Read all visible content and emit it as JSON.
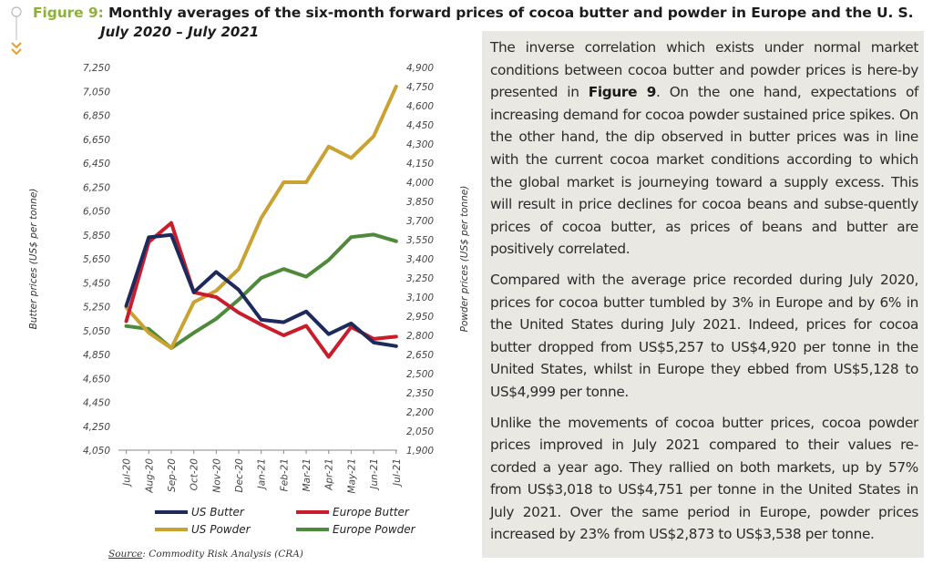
{
  "figure": {
    "label": "Figure 9:",
    "title": "Monthly averages of the six-month forward prices of cocoa butter and powder in Europe and the U. S.",
    "subtitle": "July 2020 – July 2021",
    "source_label": "Source",
    "source_text": ": Commodity Risk Analysis (CRA)"
  },
  "colors": {
    "accent": "#8fb13a",
    "marker": "#e8a02a",
    "panel_bg": "#e9e8e3",
    "us_butter": "#1f2a5c",
    "europe_butter": "#c81d2b",
    "us_powder": "#c9a231",
    "europe_powder": "#4e8a3a"
  },
  "chart_data": {
    "type": "line",
    "categories": [
      "Jul-20",
      "Aug-20",
      "Sep-20",
      "Oct-20",
      "Nov-20",
      "Dec-20",
      "Jan-21",
      "Feb-21",
      "Mar-21",
      "Apr-21",
      "May-21",
      "Jun-21",
      "Jul-21"
    ],
    "ylabel_left": "Butter prices (US$ per tonne)",
    "ylabel_right": "Powder prices (US$ per tonne)",
    "ylim_left": [
      4050,
      7250
    ],
    "yticks_left": [
      "7,250",
      "7,050",
      "6,850",
      "6,650",
      "6,450",
      "6,250",
      "6,050",
      "5,850",
      "5,650",
      "5,450",
      "5,250",
      "5,050",
      "4,850",
      "4,650",
      "4,450",
      "4,250",
      "4,050"
    ],
    "ylim_right": [
      1900,
      4900
    ],
    "yticks_right": [
      "4,900",
      "4,750",
      "4,600",
      "4,450",
      "4,300",
      "4,150",
      "4,000",
      "3,850",
      "3,700",
      "3,550",
      "3,400",
      "3,250",
      "3,100",
      "2,950",
      "2,800",
      "2,650",
      "2,500",
      "2,350",
      "2,200",
      "2,050",
      "1,900"
    ],
    "grid": false,
    "legend_position": "bottom",
    "series": [
      {
        "name": "US Butter",
        "axis": "left",
        "color": "#1f2a5c",
        "values": [
          5257,
          5830,
          5850,
          5370,
          5540,
          5390,
          5140,
          5120,
          5210,
          5020,
          5110,
          4950,
          4920
        ]
      },
      {
        "name": "Europe Butter",
        "axis": "left",
        "color": "#c81d2b",
        "values": [
          5128,
          5790,
          5950,
          5370,
          5330,
          5200,
          5100,
          5010,
          5090,
          4830,
          5080,
          4980,
          4999
        ]
      },
      {
        "name": "US Powder",
        "axis": "right",
        "color": "#c9a231",
        "values": [
          3018,
          2820,
          2700,
          3060,
          3150,
          3320,
          3720,
          4000,
          4000,
          4280,
          4190,
          4360,
          4751
        ]
      },
      {
        "name": "Europe Powder",
        "axis": "right",
        "color": "#4e8a3a",
        "values": [
          2873,
          2850,
          2700,
          2820,
          2930,
          3080,
          3250,
          3320,
          3260,
          3390,
          3570,
          3590,
          3538
        ]
      }
    ]
  },
  "text": {
    "p1_before": "The inverse correlation which exists under normal market conditions between cocoa butter and powder prices is here-by presented in ",
    "p1_bold": "Figure 9",
    "p1_after": ". On the one hand, expectations of increasing demand for cocoa powder sustained price spikes. On the other hand, the dip observed in butter prices was in line with the current cocoa market conditions according to which the global market is journeying toward a supply excess. This will result in price declines for cocoa beans and subse-quently prices of cocoa butter, as prices of beans and butter are positively correlated.",
    "p2": "Compared with the average price recorded during July 2020, prices for cocoa butter tumbled by 3% in Europe and by 6% in the United States during July 2021. Indeed, prices for cocoa butter dropped from US$5,257 to US$4,920 per tonne in the United States, whilst in Europe they ebbed from US$5,128 to US$4,999 per tonne.",
    "p3": "Unlike the movements of cocoa butter prices, cocoa powder prices improved in July 2021 compared to their values re-corded a year ago. They rallied on both markets, up by 57% from US$3,018 to US$4,751 per tonne in the United States in July 2021. Over the same period in Europe, powder prices increased by 23% from US$2,873 to US$3,538 per tonne."
  }
}
